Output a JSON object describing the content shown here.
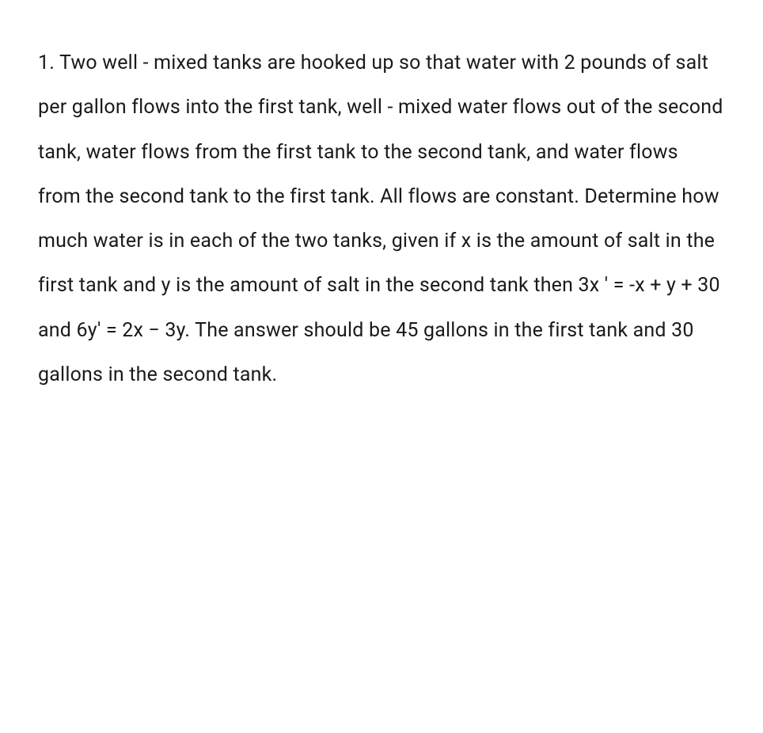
{
  "problem": {
    "number": "1.",
    "text_part1": "Two well - mixed tanks are hooked up so that water with 2 pounds of salt per gallon flows into the first tank, well - mixed water flows out of the second tank, water flows from the first tank to the second tank, and water flows from the second tank to the first tank. All flows are constant. Determine how much water is in each of the two tanks, given if x is the amount of salt in the first tank and y is the amount of salt in the second tank then 3x",
    "equation1": "'  =  -x  +  y + 30",
    "text_part2": " and ",
    "equation2": "6y'  =  2x − 3y",
    "text_part3": ".  The answer should be 45 gallons in the first tank and 30 gallons in the second tank."
  },
  "style": {
    "text_color": "#1a1a1a",
    "background_color": "#ffffff",
    "font_size": 25,
    "line_height": 2.25
  }
}
